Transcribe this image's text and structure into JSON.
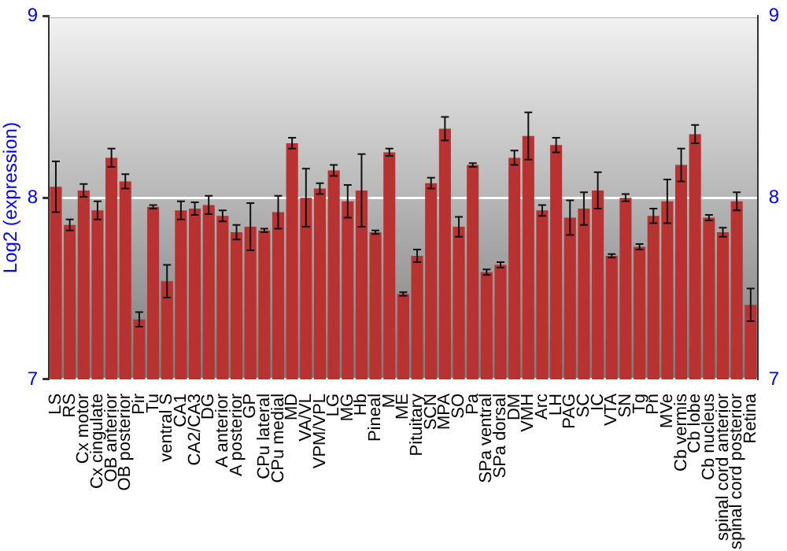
{
  "chart_data": {
    "type": "bar",
    "ylabel": "Log2 (expression)",
    "categories": [
      "LS",
      "RS",
      "Cx motor",
      "Cx cingulate",
      "OB anterior",
      "OB posterior",
      "Pir",
      "Tu",
      "ventral S",
      "CA1",
      "CA2/CA3",
      "DG",
      "A anterior",
      "A posterior",
      "GP",
      "CPu lateral",
      "CPu medial",
      "MD",
      "VA/VL",
      "VPM/VPL",
      "LG",
      "MG",
      "Hb",
      "Pineal",
      "M",
      "ME",
      "Pituitary",
      "SCN",
      "MPA",
      "SO",
      "Pa",
      "SPa ventral",
      "SPa dorsal",
      "DM",
      "VMH",
      "Arc",
      "LH",
      "PAG",
      "SC",
      "IC",
      "VTA",
      "SN",
      "Tg",
      "Pn",
      "MVe",
      "Cb vermis",
      "Cb lobe",
      "Cb nucleus",
      "spinal cord anterior",
      "spinal cord posterior",
      "Retina"
    ],
    "values": [
      8.06,
      7.85,
      8.04,
      7.93,
      8.22,
      8.09,
      7.33,
      7.95,
      7.54,
      7.93,
      7.94,
      7.96,
      7.9,
      7.81,
      7.84,
      7.82,
      7.92,
      8.3,
      8.0,
      8.05,
      8.15,
      7.98,
      8.04,
      7.81,
      8.25,
      7.47,
      7.68,
      8.08,
      8.38,
      7.84,
      8.18,
      7.59,
      7.63,
      8.22,
      8.34,
      7.93,
      8.29,
      7.89,
      7.94,
      8.04,
      7.68,
      8.0,
      7.73,
      7.9,
      7.98,
      8.18,
      8.35,
      7.89,
      7.81,
      7.98,
      7.41
    ],
    "errors": [
      0.14,
      0.03,
      0.035,
      0.05,
      0.05,
      0.04,
      0.04,
      0.01,
      0.09,
      0.05,
      0.035,
      0.05,
      0.03,
      0.04,
      0.13,
      0.01,
      0.09,
      0.03,
      0.16,
      0.03,
      0.03,
      0.09,
      0.2,
      0.01,
      0.02,
      0.01,
      0.035,
      0.03,
      0.065,
      0.055,
      0.01,
      0.015,
      0.015,
      0.04,
      0.13,
      0.03,
      0.04,
      0.095,
      0.09,
      0.1,
      0.01,
      0.02,
      0.015,
      0.04,
      0.12,
      0.09,
      0.05,
      0.015,
      0.025,
      0.05,
      0.09
    ],
    "color": "#b83232",
    "ylim": [
      7,
      9
    ],
    "yticks": [
      7,
      8,
      9
    ],
    "y2lim": [
      7,
      9
    ],
    "y2ticks": [
      7,
      8,
      9
    ],
    "grid": "y"
  }
}
